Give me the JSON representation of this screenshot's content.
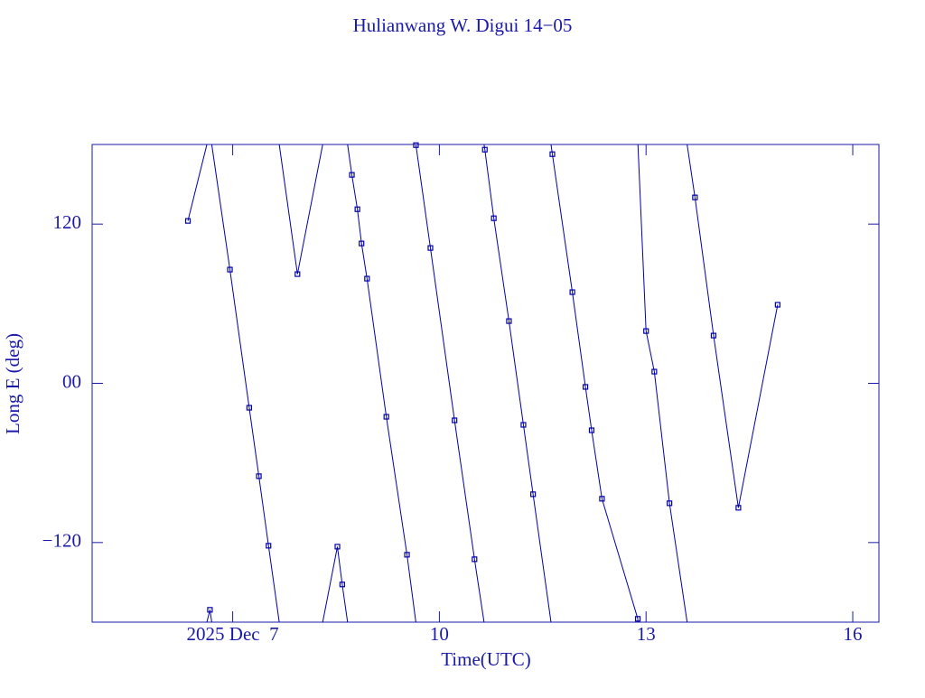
{
  "chart_data": {
    "type": "line",
    "title": "Hulianwang W. Digui 14−05",
    "x_label": "Time(UTC)",
    "y_label": "Long E (deg)",
    "x": [
      6.35,
      6.67,
      6.96,
      7.24,
      7.38,
      7.52,
      7.94,
      8.52,
      8.59,
      8.73,
      8.81,
      8.87,
      8.95,
      9.23,
      9.53,
      9.66,
      9.87,
      10.22,
      10.51,
      10.66,
      10.79,
      11.01,
      11.22,
      11.36,
      11.64,
      11.93,
      12.12,
      12.21,
      12.36,
      12.88,
      13.0,
      13.12,
      13.34,
      13.71,
      13.98,
      14.34,
      14.91
    ],
    "values": [
      122.4,
      -170.7,
      85.7,
      -18.4,
      -70.0,
      -122.4,
      82.3,
      -123.1,
      -151.6,
      157.1,
      131.2,
      105.4,
      78.9,
      -25.2,
      -129.2,
      179.5,
      102.0,
      -27.9,
      -132.6,
      176.1,
      124.4,
      46.9,
      -31.3,
      -83.6,
      172.7,
      68.7,
      -2.7,
      -35.4,
      -87.0,
      -177.5,
      39.4,
      8.8,
      -90.4,
      140.1,
      36.0,
      -93.8,
      59.2
    ],
    "color": "#0000a8",
    "xlim": [
      4.96,
      16.38
    ],
    "xticks": [
      {
        "value": 7,
        "label": "2025 Dec  7"
      },
      10,
      13,
      16
    ],
    "ylim": [
      -180,
      180
    ],
    "yticks": [
      {
        "value": -120,
        "label": "−120"
      },
      {
        "value": 0,
        "label": "00"
      },
      120
    ]
  }
}
